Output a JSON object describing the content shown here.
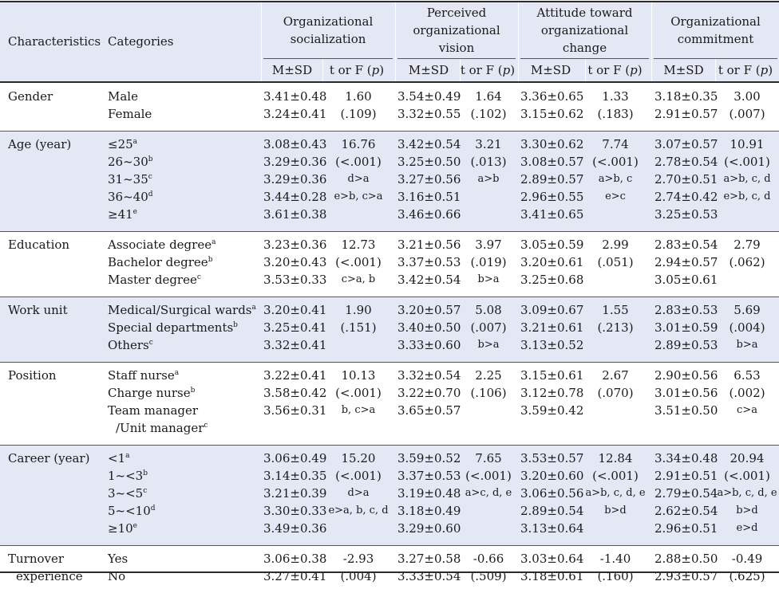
{
  "header": {
    "characteristics": "Characteristics",
    "categories": "Categories",
    "groups": [
      {
        "lines": [
          "Organizational",
          "socialization"
        ]
      },
      {
        "lines": [
          "Perceived",
          "organizational",
          "vision"
        ]
      },
      {
        "lines": [
          "Attitude toward",
          "organizational",
          "change"
        ]
      },
      {
        "lines": [
          "Organizational",
          "commitment"
        ]
      }
    ],
    "msd": "M±SD",
    "tf": "t or F (",
    "p": "p",
    "tf_close": ")"
  },
  "sections": [
    {
      "label": [
        "Gender"
      ],
      "rows": [
        {
          "cat": "Male",
          "sup": "",
          "v": [
            "3.41±0.48",
            "1.60",
            "3.54±0.49",
            "1.64",
            "3.36±0.65",
            "1.33",
            "3.18±0.35",
            "3.00"
          ]
        },
        {
          "cat": "Female",
          "sup": "",
          "v": [
            "3.24±0.41",
            "(.109)",
            "3.32±0.55",
            "(.102)",
            "3.15±0.62",
            "(.183)",
            "2.91±0.57",
            "(.007)"
          ]
        }
      ]
    },
    {
      "label": [
        "Age (year)"
      ],
      "rows": [
        {
          "cat": "≤25",
          "sup": "a",
          "v": [
            "3.08±0.43",
            "16.76",
            "3.42±0.54",
            "3.21",
            "3.30±0.62",
            "7.74",
            "3.07±0.57",
            "10.91"
          ]
        },
        {
          "cat": "26~30",
          "sup": "b",
          "v": [
            "3.29±0.36",
            "(<.001)",
            "3.25±0.50",
            "(.013)",
            "3.08±0.57",
            "(<.001)",
            "2.78±0.54",
            "(<.001)"
          ]
        },
        {
          "cat": "31~35",
          "sup": "c",
          "v": [
            "3.29±0.36",
            "d>a",
            "3.27±0.56",
            "a>b",
            "2.89±0.57",
            "a>b, c",
            "2.70±0.51",
            "a>b, c, d"
          ]
        },
        {
          "cat": "36~40",
          "sup": "d",
          "v": [
            "3.44±0.28",
            "e>b, c>a",
            "3.16±0.51",
            "",
            "2.96±0.55",
            "e>c",
            "2.74±0.42",
            "e>b, c, d"
          ]
        },
        {
          "cat": "≥41",
          "sup": "e",
          "v": [
            "3.61±0.38",
            "",
            "3.46±0.66",
            "",
            "3.41±0.65",
            "",
            "3.25±0.53",
            ""
          ]
        }
      ]
    },
    {
      "label": [
        "Education"
      ],
      "rows": [
        {
          "cat": "Associate degree",
          "sup": "a",
          "v": [
            "3.23±0.36",
            "12.73",
            "3.21±0.56",
            "3.97",
            "3.05±0.59",
            "2.99",
            "2.83±0.54",
            "2.79"
          ]
        },
        {
          "cat": "Bachelor degree",
          "sup": "b",
          "v": [
            "3.20±0.43",
            "(<.001)",
            "3.37±0.53",
            "(.019)",
            "3.20±0.61",
            "(.051)",
            "2.94±0.57",
            "(.062)"
          ]
        },
        {
          "cat": "Master degree",
          "sup": "c",
          "v": [
            "3.53±0.33",
            "c>a, b",
            "3.42±0.54",
            "b>a",
            "3.25±0.68",
            "",
            "3.05±0.61",
            ""
          ]
        }
      ]
    },
    {
      "label": [
        "Work unit"
      ],
      "rows": [
        {
          "cat": "Medical/Surgical wards",
          "sup": "a",
          "v": [
            "3.20±0.41",
            "1.90",
            "3.20±0.57",
            "5.08",
            "3.09±0.67",
            "1.55",
            "2.83±0.53",
            "5.69"
          ]
        },
        {
          "cat": "Special departments",
          "sup": "b",
          "v": [
            "3.25±0.41",
            "(.151)",
            "3.40±0.50",
            "(.007)",
            "3.21±0.61",
            "(.213)",
            "3.01±0.59",
            "(.004)"
          ]
        },
        {
          "cat": "Others",
          "sup": "c",
          "v": [
            "3.32±0.41",
            "",
            "3.33±0.60",
            "b>a",
            "3.13±0.52",
            "",
            "2.89±0.53",
            "b>a"
          ]
        }
      ]
    },
    {
      "label": [
        "Position"
      ],
      "rows": [
        {
          "cat": "Staff nurse",
          "sup": "a",
          "v": [
            "3.22±0.41",
            "10.13",
            "3.32±0.54",
            "2.25",
            "3.15±0.61",
            "2.67",
            "2.90±0.56",
            "6.53"
          ]
        },
        {
          "cat": "Charge nurse",
          "sup": "b",
          "v": [
            "3.58±0.42",
            "(<.001)",
            "3.22±0.70",
            "(.106)",
            "3.12±0.78",
            "(.070)",
            "3.01±0.56",
            "(.002)"
          ]
        },
        {
          "cat": "Team manager",
          "sup": "",
          "v": [
            "3.56±0.31",
            "b, c>a",
            "3.65±0.57",
            "",
            "3.59±0.42",
            "",
            "3.51±0.50",
            "c>a"
          ]
        },
        {
          "cat": "/Unit manager",
          "sup": "c",
          "indent": true,
          "v": [
            "",
            "",
            "",
            "",
            "",
            "",
            "",
            ""
          ]
        }
      ]
    },
    {
      "label": [
        "Career (year)"
      ],
      "rows": [
        {
          "cat": "<1",
          "sup": "a",
          "v": [
            "3.06±0.49",
            "15.20",
            "3.59±0.52",
            "7.65",
            "3.53±0.57",
            "12.84",
            "3.34±0.48",
            "20.94"
          ]
        },
        {
          "cat": "1~<3",
          "sup": "b",
          "v": [
            "3.14±0.35",
            "(<.001)",
            "3.37±0.53",
            "(<.001)",
            "3.20±0.60",
            "(<.001)",
            "2.91±0.51",
            "(<.001)"
          ]
        },
        {
          "cat": "3~<5",
          "sup": "c",
          "v": [
            "3.21±0.39",
            "d>a",
            "3.19±0.48",
            "a>c, d, e",
            "3.06±0.56",
            "a>b, c, d, e",
            "2.79±0.54",
            "a>b, c, d, e"
          ]
        },
        {
          "cat": "5~<10",
          "sup": "d",
          "v": [
            "3.30±0.33",
            "e>a, b, c, d",
            "3.18±0.49",
            "",
            "2.89±0.54",
            "b>d",
            "2.62±0.54",
            "b>d"
          ]
        },
        {
          "cat": "≥10",
          "sup": "e",
          "v": [
            "3.49±0.36",
            "",
            "3.29±0.60",
            "",
            "3.13±0.64",
            "",
            "2.96±0.51",
            "e>d"
          ]
        }
      ]
    },
    {
      "label": [
        "Turnover",
        "experience"
      ],
      "rows": [
        {
          "cat": "Yes",
          "sup": "",
          "v": [
            "3.06±0.38",
            "-2.93",
            "3.27±0.58",
            "-0.66",
            "3.03±0.64",
            "-1.40",
            "2.88±0.50",
            "-0.49"
          ]
        },
        {
          "cat": "No",
          "sup": "",
          "v": [
            "3.27±0.41",
            "(.004)",
            "3.33±0.54",
            "(.509)",
            "3.18±0.61",
            "(.160)",
            "2.93±0.57",
            "(.625)"
          ]
        }
      ]
    }
  ]
}
